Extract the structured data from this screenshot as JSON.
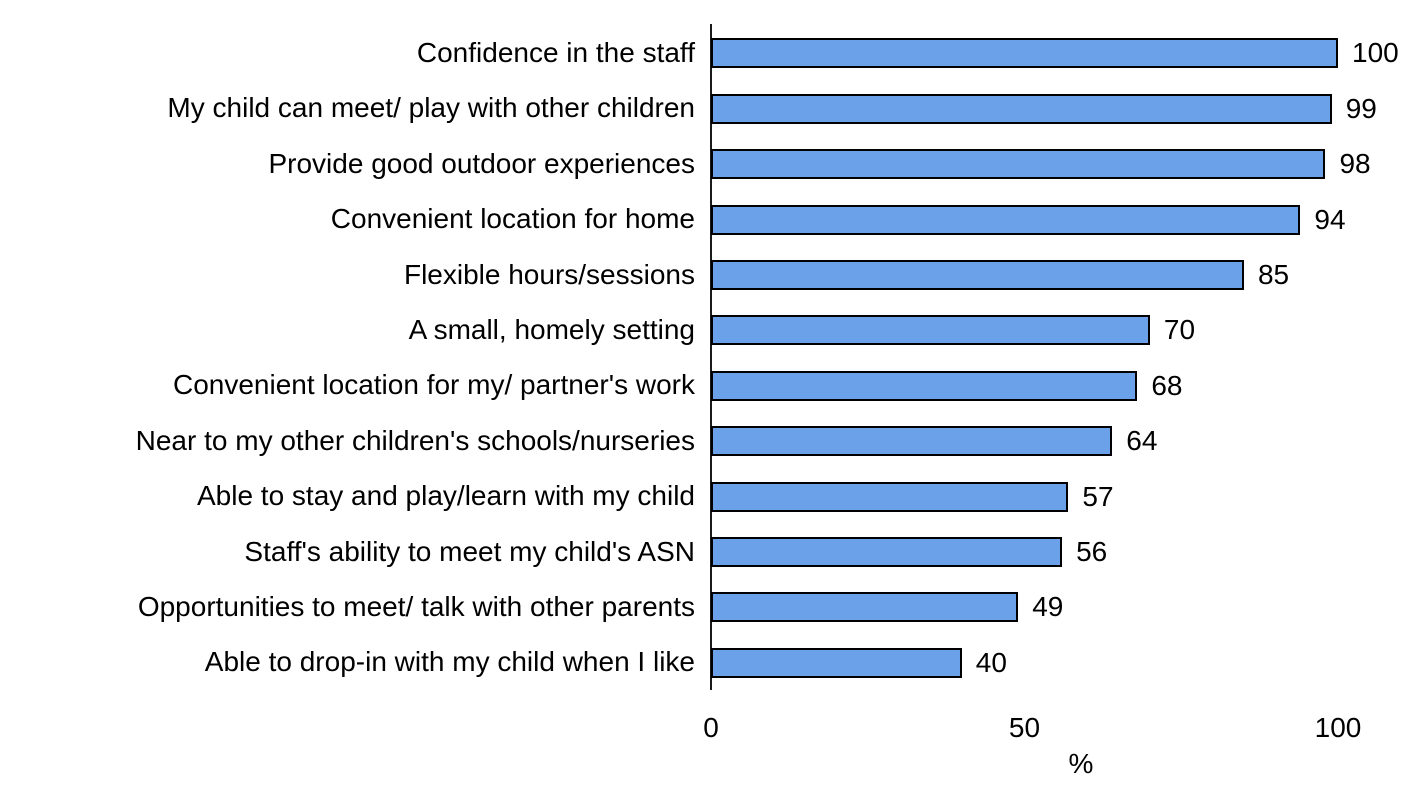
{
  "chart_data": {
    "type": "bar",
    "orientation": "horizontal",
    "title": "",
    "xlabel": "%",
    "xlim": [
      0,
      100
    ],
    "xticks": [
      0,
      50,
      100
    ],
    "grid": false,
    "legend": false,
    "bar_color": "#6BA1E8",
    "bar_border_color": "#000000",
    "axis_color": "#1a1a1a",
    "categories": [
      "Confidence in the staff",
      "My child can meet/ play with other children",
      "Provide good outdoor experiences",
      "Convenient location for home",
      "Flexible hours/sessions",
      "A small, homely setting",
      "Convenient location for my/ partner's work",
      "Near to my other children's schools/nurseries",
      "Able to stay and play/learn with my child",
      "Staff's ability to meet my child's ASN",
      "Opportunities to meet/ talk with other parents",
      "Able to drop-in with my child when I like"
    ],
    "values": [
      100,
      99,
      98,
      94,
      85,
      70,
      68,
      64,
      57,
      56,
      49,
      40
    ]
  }
}
